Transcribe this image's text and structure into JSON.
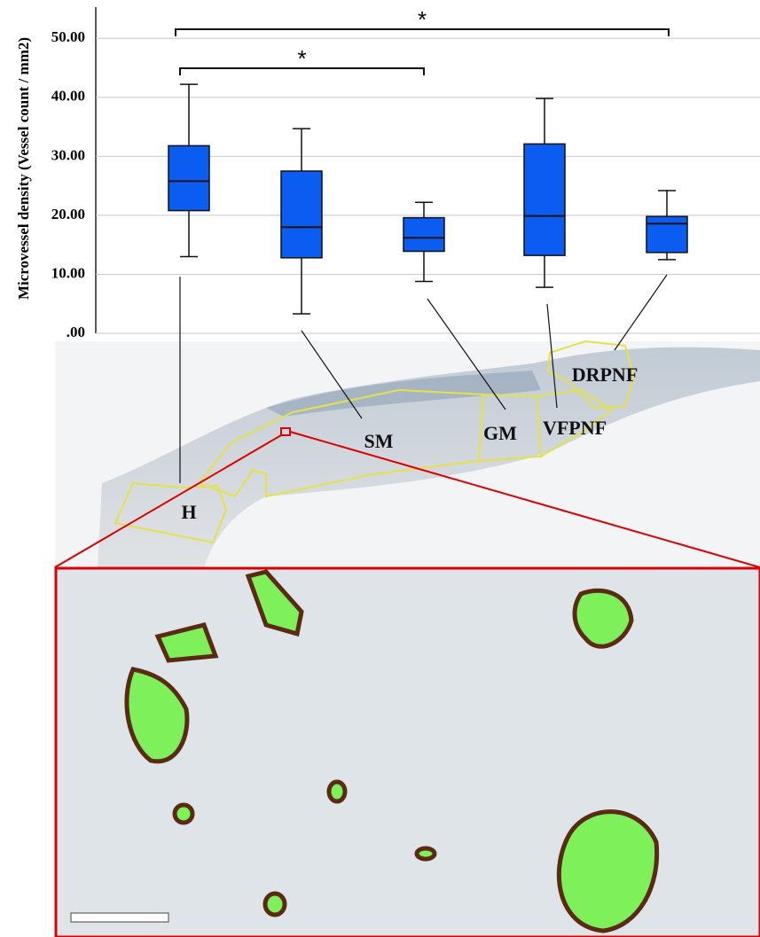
{
  "chart_data": {
    "type": "box",
    "y_label": "Microvessel density (Vessel count / mm2)",
    "categories": [
      "H",
      "SM",
      "GM",
      "VFPNF",
      "DRPNF"
    ],
    "boxes": [
      {
        "min": 13,
        "q1": 20.8,
        "median": 25.8,
        "q3": 31.8,
        "max": 42.2
      },
      {
        "min": 3.3,
        "q1": 12.8,
        "median": 18,
        "q3": 27.5,
        "max": 34.7
      },
      {
        "min": 8.8,
        "q1": 13.9,
        "median": 16.2,
        "q3": 19.6,
        "max": 22.2
      },
      {
        "min": 7.8,
        "q1": 13.2,
        "median": 19.9,
        "q3": 32.1,
        "max": 39.8
      },
      {
        "min": 12.5,
        "q1": 13.7,
        "median": 18.6,
        "q3": 19.8,
        "max": 24.2
      }
    ],
    "color": "#0b5cf0",
    "ylim": [
      0,
      55
    ],
    "yticks": [
      {
        "value": 0,
        "label": ".00"
      },
      {
        "value": 10,
        "label": "10.00"
      },
      {
        "value": 20,
        "label": "20.00"
      },
      {
        "value": 30,
        "label": "30.00"
      },
      {
        "value": 40,
        "label": "40.00"
      },
      {
        "value": 50,
        "label": "50.00"
      }
    ],
    "grid": true,
    "annotations": [
      "*",
      "*"
    ]
  }
}
